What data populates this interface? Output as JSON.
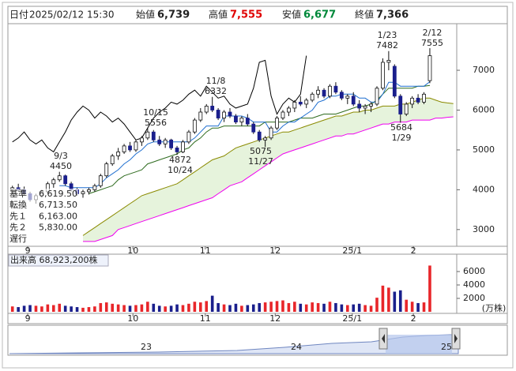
{
  "header": {
    "date_label": "日付",
    "datetime": "2025/02/12 15:30",
    "fields": [
      {
        "label": "始値",
        "value": "6,739"
      },
      {
        "label": "高値",
        "value": "7,555"
      },
      {
        "label": "安値",
        "value": "6,677"
      },
      {
        "label": "終値",
        "value": "7,366"
      }
    ]
  },
  "chart_data": {
    "type": "candlestick",
    "open": [
      3950,
      4050,
      4000,
      3900,
      3750,
      3850,
      3950,
      4150,
      4250,
      4350,
      4150,
      4000,
      3900,
      3950,
      4000,
      4100,
      4350,
      4650,
      4850,
      4950,
      5100,
      5000,
      5200,
      5300,
      5450,
      5250,
      5150,
      5250,
      5050,
      4950,
      5200,
      5450,
      5750,
      5950,
      6100,
      6000,
      5800,
      5950,
      5850,
      5700,
      5800,
      5650,
      5450,
      5250,
      5300,
      5550,
      5800,
      5950,
      6050,
      6200,
      6150,
      6250,
      6400,
      6500,
      6350,
      6600,
      6450,
      6300,
      6350,
      6150,
      6050,
      6100,
      6150,
      6550,
      7200,
      7100,
      6350,
      5900,
      6150,
      6300,
      6200,
      6739
    ],
    "high": [
      4100,
      4150,
      4080,
      3950,
      3900,
      4000,
      4200,
      4300,
      4450,
      4380,
      4200,
      4050,
      4000,
      4050,
      4150,
      4400,
      4700,
      4900,
      5050,
      5150,
      5200,
      5250,
      5350,
      5556,
      5500,
      5350,
      5300,
      5280,
      5100,
      5250,
      5500,
      5800,
      6050,
      6150,
      6332,
      6050,
      6000,
      6050,
      5900,
      5850,
      5900,
      5700,
      5500,
      5350,
      5600,
      5850,
      6000,
      6100,
      6250,
      6350,
      6300,
      6450,
      6600,
      6550,
      6650,
      6700,
      6500,
      6400,
      6450,
      6250,
      6150,
      6200,
      6600,
      7300,
      7482,
      7150,
      6400,
      6200,
      6350,
      6400,
      6450,
      7555
    ],
    "low": [
      3900,
      3950,
      3850,
      3700,
      3650,
      3800,
      3900,
      4050,
      4200,
      4100,
      3950,
      3850,
      3800,
      3880,
      3950,
      4050,
      4300,
      4600,
      4750,
      4900,
      4950,
      4950,
      5100,
      5250,
      5200,
      5100,
      5050,
      5000,
      4872,
      4920,
      5150,
      5400,
      5700,
      5900,
      5950,
      5750,
      5700,
      5800,
      5650,
      5600,
      5600,
      5400,
      5200,
      5075,
      5250,
      5500,
      5750,
      5850,
      5950,
      6100,
      6050,
      6200,
      6300,
      6300,
      6300,
      6400,
      6250,
      6150,
      6100,
      5950,
      5900,
      5950,
      6100,
      6500,
      7000,
      6300,
      5684,
      5850,
      6050,
      6150,
      6150,
      6677
    ],
    "close": [
      4050,
      4000,
      3900,
      3750,
      3850,
      3950,
      4150,
      4250,
      4350,
      4150,
      4000,
      3900,
      3950,
      4000,
      4100,
      4350,
      4650,
      4850,
      4950,
      5100,
      5000,
      5200,
      5300,
      5450,
      5250,
      5150,
      5250,
      5050,
      4950,
      5200,
      5450,
      5750,
      5950,
      6100,
      6000,
      5800,
      5950,
      5850,
      5700,
      5800,
      5650,
      5450,
      5250,
      5300,
      5550,
      5800,
      5950,
      6050,
      6200,
      6150,
      6250,
      6400,
      6500,
      6350,
      6600,
      6450,
      6300,
      6350,
      6150,
      6050,
      6100,
      6150,
      6550,
      7200,
      7250,
      6350,
      5900,
      6150,
      6300,
      6200,
      6400,
      7366
    ],
    "up_color": "#ffffff",
    "down_color": "#1a1f8c",
    "ylim": [
      2580,
      8170
    ],
    "yticks": [
      3000,
      4000,
      5000,
      6000,
      7000
    ],
    "xticks": [
      {
        "value": 2.6,
        "label": "9"
      },
      {
        "value": 20.5,
        "label": "10"
      },
      {
        "value": 32.8,
        "label": "11"
      },
      {
        "value": 44.7,
        "label": "12"
      },
      {
        "value": 57.8,
        "label": "25/1"
      },
      {
        "value": 68.2,
        "label": "2"
      }
    ],
    "series": [
      {
        "name": "基準",
        "color": "#2e6b1e",
        "legend_value": "6,619.50",
        "values": [
          null,
          null,
          null,
          null,
          null,
          null,
          null,
          null,
          null,
          null,
          null,
          null,
          null,
          3900,
          3950,
          4000,
          4050,
          4100,
          4250,
          4350,
          4400,
          4450,
          4500,
          4650,
          4700,
          4750,
          4800,
          4850,
          4900,
          5000,
          5050,
          5200,
          5300,
          5450,
          5550,
          5550,
          5600,
          5600,
          5600,
          5600,
          5600,
          5600,
          5600,
          5700,
          5700,
          5700,
          5700,
          5700,
          5750,
          5800,
          5800,
          5800,
          5850,
          5900,
          5900,
          5900,
          5950,
          6000,
          6050,
          6100,
          6100,
          6150,
          6250,
          6400,
          6550,
          6550,
          6550,
          6550,
          6550,
          6600,
          6600,
          6619.5
        ]
      },
      {
        "name": "転換",
        "color": "#1f6fd0",
        "legend_value": "6,713.50",
        "values": [
          null,
          null,
          null,
          null,
          null,
          null,
          null,
          null,
          4100,
          4100,
          4050,
          4050,
          4050,
          4050,
          4050,
          4150,
          4300,
          4400,
          4500,
          4650,
          4750,
          4900,
          5000,
          5150,
          5200,
          5200,
          5200,
          5200,
          5200,
          5200,
          5200,
          5300,
          5450,
          5600,
          5600,
          5600,
          5850,
          5850,
          5850,
          5850,
          5800,
          5700,
          5700,
          5700,
          5450,
          5450,
          5600,
          5700,
          5700,
          5800,
          5900,
          6000,
          6200,
          6250,
          6350,
          6350,
          6400,
          6400,
          6400,
          6300,
          6300,
          6200,
          6200,
          6400,
          6700,
          6700,
          6600,
          6600,
          6600,
          6600,
          6600,
          6713.5
        ]
      },
      {
        "name": "先１",
        "color": "#8a8a00",
        "legend_value": "6,163.00",
        "values": [
          null,
          null,
          null,
          null,
          null,
          null,
          null,
          null,
          null,
          null,
          null,
          null,
          2850,
          2950,
          3050,
          3150,
          3250,
          3350,
          3450,
          3550,
          3650,
          3750,
          3850,
          3900,
          3950,
          4000,
          4050,
          4100,
          4150,
          4250,
          4350,
          4450,
          4550,
          4650,
          4750,
          4800,
          4850,
          4950,
          5050,
          5100,
          5150,
          5200,
          5250,
          5300,
          5350,
          5400,
          5450,
          5450,
          5500,
          5550,
          5600,
          5650,
          5700,
          5750,
          5800,
          5850,
          5850,
          5900,
          5950,
          5950,
          6000,
          6000,
          6050,
          6100,
          6100,
          6100,
          6150,
          6150,
          6200,
          6250,
          6300,
          6300,
          6250,
          6200,
          6180,
          6163
        ]
      },
      {
        "name": "先２",
        "color": "#f000f0",
        "legend_value": "5,830.00",
        "values": [
          null,
          null,
          null,
          null,
          null,
          null,
          null,
          null,
          null,
          null,
          null,
          null,
          2700,
          2700,
          2700,
          2750,
          2800,
          2850,
          3000,
          3050,
          3100,
          3150,
          3200,
          3250,
          3300,
          3350,
          3400,
          3450,
          3500,
          3550,
          3600,
          3650,
          3700,
          3750,
          3800,
          3900,
          4000,
          4100,
          4150,
          4200,
          4300,
          4400,
          4500,
          4600,
          4700,
          4800,
          4900,
          4950,
          5000,
          5050,
          5100,
          5150,
          5200,
          5250,
          5300,
          5350,
          5350,
          5400,
          5400,
          5450,
          5500,
          5550,
          5600,
          5650,
          5650,
          5700,
          5700,
          5700,
          5750,
          5750,
          5750,
          5750,
          5800,
          5800,
          5820,
          5830
        ]
      },
      {
        "name": "遅行",
        "color": "#000000",
        "values": [
          5200,
          5300,
          5450,
          5250,
          5150,
          5250,
          5050,
          4950,
          5200,
          5450,
          5750,
          5950,
          6100,
          6000,
          5800,
          5950,
          5850,
          5700,
          5800,
          5650,
          5450,
          5250,
          5300,
          5550,
          5800,
          5950,
          6050,
          6200,
          6150,
          6250,
          6400,
          6500,
          6350,
          6600,
          6450,
          6300,
          6350,
          6150,
          6050,
          6100,
          6150,
          6550,
          7200,
          7250,
          6350,
          5900,
          6150,
          6300,
          6200,
          6400,
          7366,
          null,
          null,
          null,
          null,
          null,
          null,
          null,
          null,
          null,
          null,
          null,
          null,
          null,
          null,
          null,
          null,
          null,
          null,
          null,
          null,
          null
        ]
      }
    ],
    "cloud_color": "#e6f3dc",
    "annotations": [
      [
        "9/3",
        "4450"
      ],
      [
        "10/15",
        "5556"
      ],
      [
        "11/8",
        "6332"
      ],
      [
        "1/23",
        "7482"
      ],
      [
        "2/12",
        "7555"
      ],
      [
        "4872",
        "10/24"
      ],
      [
        "5075",
        "11/27"
      ],
      [
        "5684",
        "1/29"
      ]
    ],
    "volume": {
      "label": "出来高 68,923,200株",
      "unit": "(万株)",
      "ylim": [
        0,
        8470
      ],
      "yticks": [
        2000,
        4000,
        6000
      ],
      "up_color": "#e8262a",
      "down_color": "#1a1f8c",
      "values": [
        800,
        700,
        900,
        1000,
        900,
        800,
        1100,
        1000,
        1200,
        900,
        800,
        700,
        600,
        700,
        800,
        1300,
        1400,
        1200,
        1100,
        1000,
        900,
        1000,
        1100,
        1500,
        1200,
        900,
        800,
        900,
        1100,
        1000,
        1200,
        1500,
        1400,
        1600,
        2400,
        1300,
        1100,
        1000,
        1200,
        900,
        1000,
        1100,
        1300,
        1400,
        1500,
        1600,
        1700,
        1300,
        1500,
        1200,
        1100,
        1400,
        1300,
        1200,
        1500,
        1300,
        1100,
        1000,
        1100,
        1200,
        1000,
        900,
        2100,
        3900,
        3600,
        3000,
        3200,
        1800,
        1500,
        1300,
        1400,
        6892.32
      ]
    }
  },
  "navigator": {
    "labels": [
      "23",
      "24",
      "25"
    ]
  }
}
